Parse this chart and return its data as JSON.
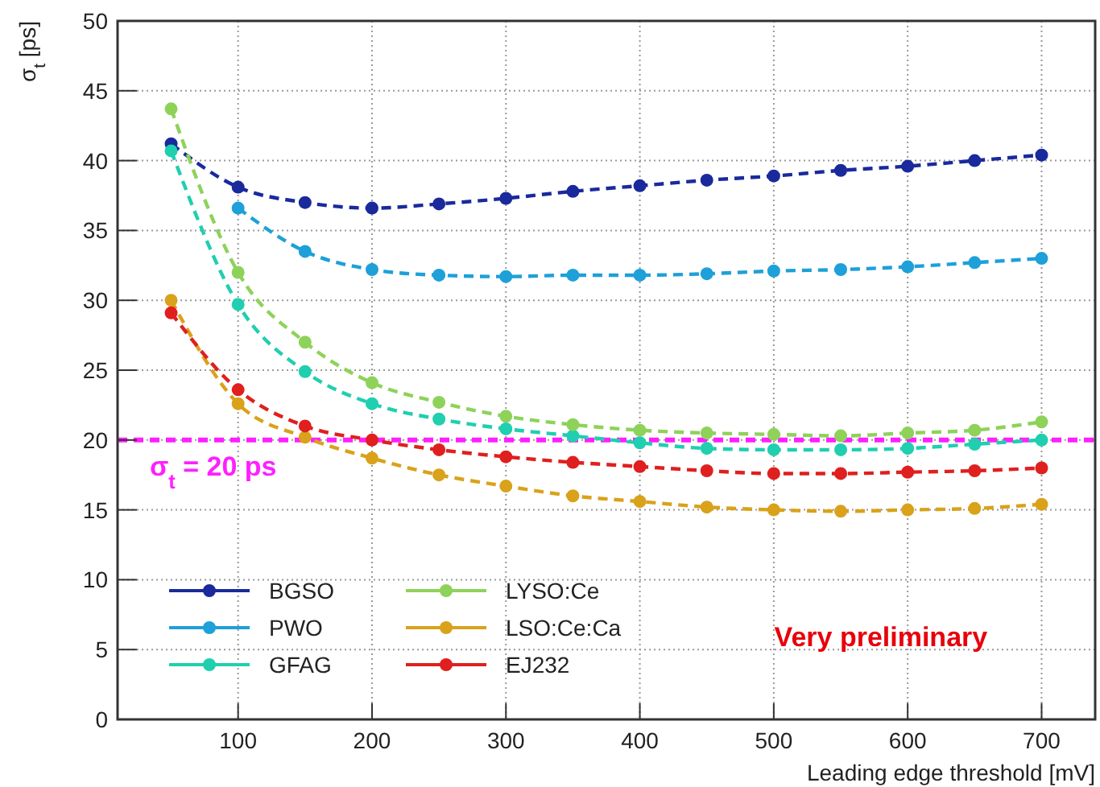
{
  "chart_data": {
    "type": "line",
    "xlabel": "Leading edge threshold [mV]",
    "ylabel": "σ$_{t}$ [ps]",
    "x": [
      50,
      100,
      150,
      200,
      250,
      300,
      350,
      400,
      450,
      500,
      550,
      600,
      650,
      700
    ],
    "series": [
      {
        "name": "BGSO",
        "color": "#1a2a9c",
        "values": [
          41.2,
          38.1,
          37.0,
          36.6,
          36.9,
          37.3,
          37.8,
          38.2,
          38.6,
          38.9,
          39.3,
          39.6,
          40.0,
          40.4
        ]
      },
      {
        "name": "PWO",
        "color": "#1ea0d8",
        "values": [
          null,
          36.6,
          33.5,
          32.2,
          31.8,
          31.7,
          31.8,
          31.8,
          31.9,
          32.1,
          32.2,
          32.4,
          32.7,
          33.0
        ]
      },
      {
        "name": "GFAG",
        "color": "#1fcfb0",
        "values": [
          40.7,
          29.7,
          24.9,
          22.6,
          21.5,
          20.8,
          20.3,
          19.8,
          19.4,
          19.3,
          19.3,
          19.4,
          19.7,
          20.0
        ]
      },
      {
        "name": "LYSO:Ce",
        "color": "#8ed25a",
        "values": [
          43.7,
          32.0,
          27.0,
          24.1,
          22.7,
          21.7,
          21.1,
          20.7,
          20.5,
          20.4,
          20.3,
          20.5,
          20.7,
          21.3
        ]
      },
      {
        "name": "LSO:Ce:Ca",
        "color": "#d9a21a",
        "values": [
          30.0,
          22.6,
          20.2,
          18.7,
          17.5,
          16.7,
          16.0,
          15.6,
          15.2,
          15.0,
          14.9,
          15.0,
          15.1,
          15.4
        ]
      },
      {
        "name": "EJ232",
        "color": "#e01f1f",
        "values": [
          29.1,
          23.6,
          21.0,
          20.0,
          19.3,
          18.8,
          18.4,
          18.1,
          17.8,
          17.6,
          17.6,
          17.7,
          17.8,
          18.0
        ]
      }
    ],
    "xlim": [
      10,
      740
    ],
    "xticks": [
      100,
      200,
      300,
      400,
      500,
      600,
      700
    ],
    "ylim": [
      0,
      50
    ],
    "yticks": [
      0,
      5,
      10,
      15,
      20,
      25,
      30,
      35,
      40,
      45,
      50
    ],
    "ref_lines": [
      {
        "axis": "y",
        "value": 20,
        "label": "σ$_{t}$ = 20 ps",
        "color": "#ff1fff",
        "line_style": "dashed"
      }
    ],
    "annotations": [
      "Very preliminary"
    ],
    "grid": true,
    "legend": "bottom left",
    "marker": "circle",
    "line_style": "dashed"
  }
}
